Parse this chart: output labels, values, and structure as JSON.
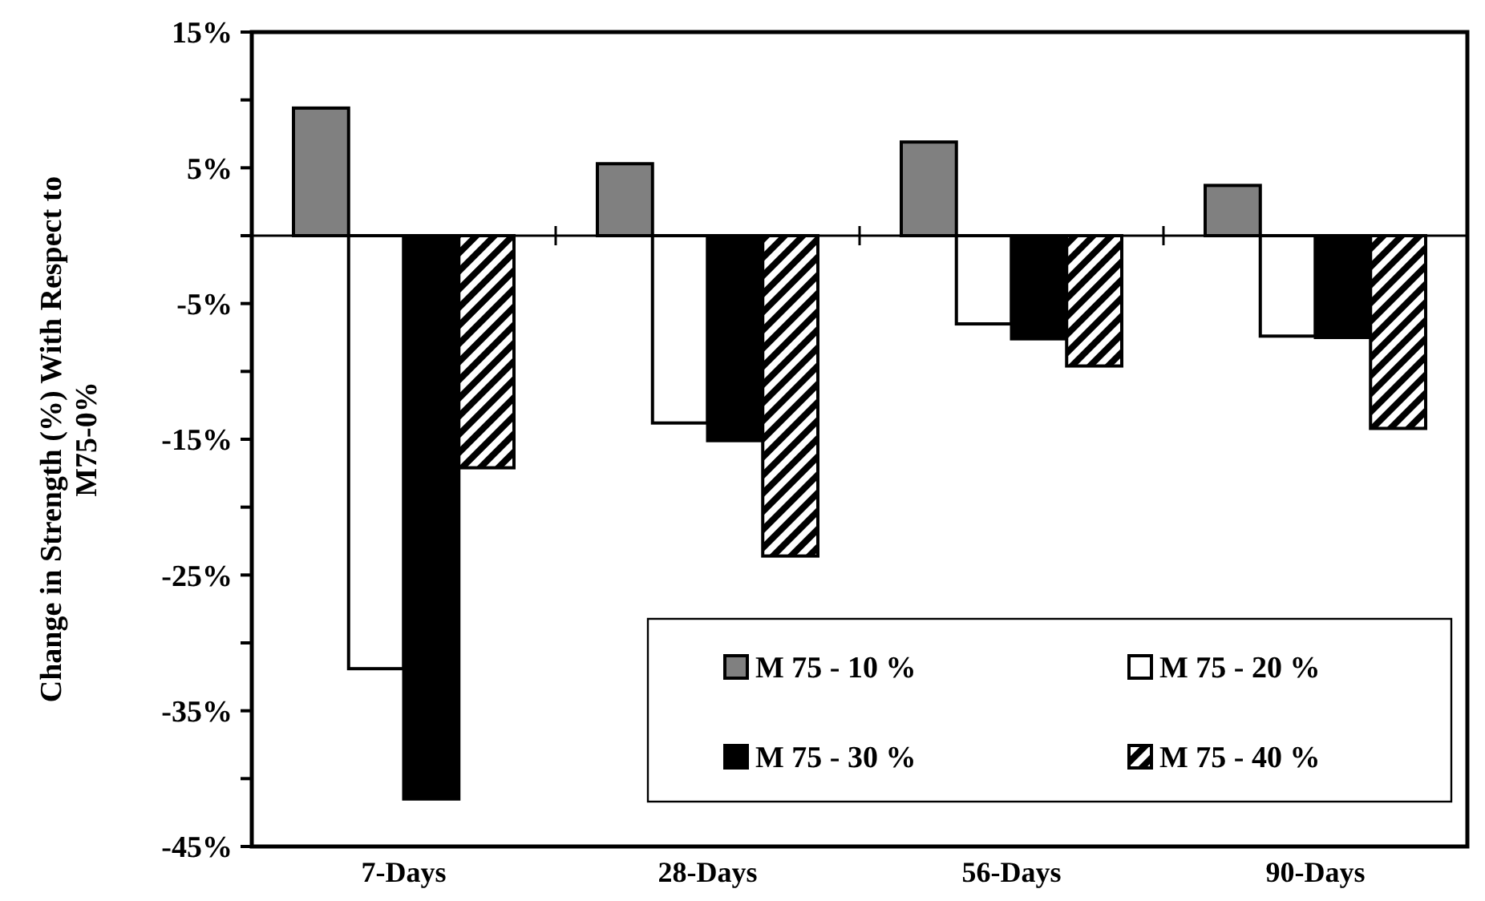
{
  "chart_data": {
    "type": "bar",
    "ylabel": "Change in Strength (%) With Respect to M75-0%",
    "categories": [
      "7-Days",
      "28-Days",
      "56-Days",
      "90-Days"
    ],
    "series": [
      {
        "name": "M 75 - 10 %",
        "color": "#808080",
        "values": [
          9.4,
          5.3,
          6.9,
          3.7
        ]
      },
      {
        "name": "M 75 - 20 %",
        "color": "#ffffff",
        "values": [
          -31.9,
          -13.8,
          -6.5,
          -7.4
        ]
      },
      {
        "name": "M 75 - 30 %",
        "color": "#000000",
        "values": [
          -41.5,
          -15.1,
          -7.6,
          -7.5
        ]
      },
      {
        "name": "M 75 - 40 %",
        "color": "#000000",
        "values": [
          -17.1,
          -23.6,
          -9.6,
          -14.2
        ]
      }
    ],
    "ylim": [
      -45,
      15
    ],
    "yticks": [
      {
        "value": -45,
        "label": "-45%"
      },
      {
        "value": -40,
        "label": null
      },
      {
        "value": -35,
        "label": "-35%"
      },
      {
        "value": -30,
        "label": null
      },
      {
        "value": -25,
        "label": "-25%"
      },
      {
        "value": -20,
        "label": null
      },
      {
        "value": -15,
        "label": "-15%"
      },
      {
        "value": -10,
        "label": null
      },
      {
        "value": -5,
        "label": "-5%"
      },
      {
        "value": 0,
        "label": null
      },
      {
        "value": 5,
        "label": "5%"
      },
      {
        "value": 10,
        "label": null
      },
      {
        "value": 15,
        "label": "15%"
      }
    ],
    "legend": "bottom right"
  }
}
